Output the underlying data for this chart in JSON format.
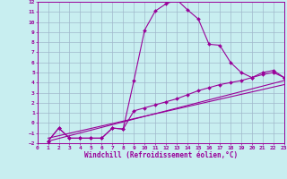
{
  "xlabel": "Windchill (Refroidissement éolien,°C)",
  "xlim": [
    0,
    23
  ],
  "ylim": [
    -2,
    12
  ],
  "xticks": [
    0,
    1,
    2,
    3,
    4,
    5,
    6,
    7,
    8,
    9,
    10,
    11,
    12,
    13,
    14,
    15,
    16,
    17,
    18,
    19,
    20,
    21,
    22,
    23
  ],
  "yticks": [
    -2,
    -1,
    0,
    1,
    2,
    3,
    4,
    5,
    6,
    7,
    8,
    9,
    10,
    11,
    12
  ],
  "bg_color": "#c8eef0",
  "grid_color": "#a0b8cc",
  "line_color": "#990099",
  "line1_x": [
    1,
    2,
    3,
    4,
    5,
    6,
    7,
    8,
    9,
    10,
    11,
    12,
    13,
    14,
    15,
    16,
    17,
    18,
    19,
    20,
    21,
    22,
    23
  ],
  "line1_y": [
    -1.8,
    -0.5,
    -1.5,
    -1.5,
    -1.5,
    -1.5,
    -0.5,
    -0.6,
    4.2,
    9.2,
    11.1,
    11.8,
    12.2,
    11.2,
    10.3,
    7.8,
    7.7,
    6.0,
    5.0,
    4.5,
    5.0,
    5.2,
    4.5
  ],
  "line2_x": [
    1,
    2,
    3,
    4,
    5,
    6,
    7,
    8,
    9,
    10,
    11,
    12,
    13,
    14,
    15,
    16,
    17,
    18,
    19,
    20,
    21,
    22,
    23
  ],
  "line2_y": [
    -1.8,
    -0.5,
    -1.5,
    -1.5,
    -1.5,
    -1.5,
    -0.5,
    -0.6,
    1.2,
    1.5,
    1.8,
    2.1,
    2.4,
    2.8,
    3.2,
    3.5,
    3.8,
    4.0,
    4.2,
    4.5,
    4.8,
    5.0,
    4.5
  ],
  "line3_x": [
    1,
    23
  ],
  "line3_y": [
    -1.8,
    4.2
  ],
  "line4_x": [
    1,
    23
  ],
  "line4_y": [
    -1.5,
    3.8
  ]
}
